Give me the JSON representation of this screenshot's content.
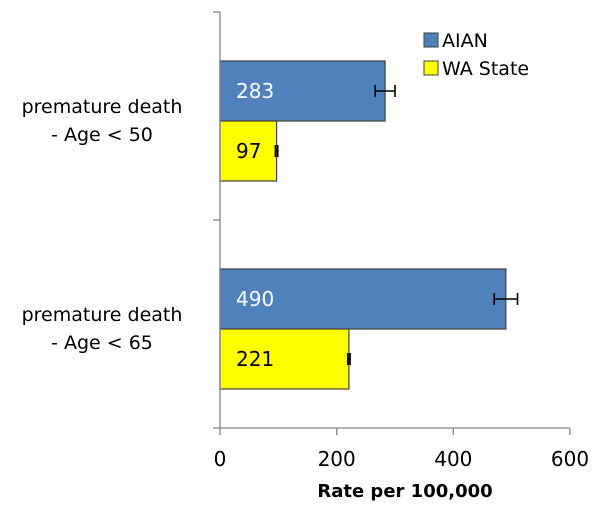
{
  "chart_data": {
    "type": "bar",
    "orientation": "horizontal",
    "categories": [
      [
        "premature death",
        "- Age < 50"
      ],
      [
        "premature death",
        "- Age < 65"
      ]
    ],
    "series": [
      {
        "name": "AIAN",
        "color": "#4f81bd",
        "label_color": "#ffffff",
        "values": [
          283,
          490
        ],
        "value_labels": [
          "283",
          "490"
        ],
        "error": [
          17,
          20
        ]
      },
      {
        "name": "WA State",
        "color": "#ffff00",
        "label_color": "#000000",
        "values": [
          97,
          221
        ],
        "value_labels": [
          "97",
          "221"
        ],
        "error": [
          2,
          2
        ]
      }
    ],
    "xlim": [
      0,
      600
    ],
    "xticks": [
      0,
      200,
      400,
      600
    ],
    "xtick_labels": [
      "0",
      "200",
      "400",
      "600"
    ],
    "xlabel": "Rate per 100,000",
    "ylabel": "",
    "title": "",
    "grid": false,
    "legend_position": "top-right",
    "border_color": "#404040",
    "axis_color": "#868686"
  }
}
